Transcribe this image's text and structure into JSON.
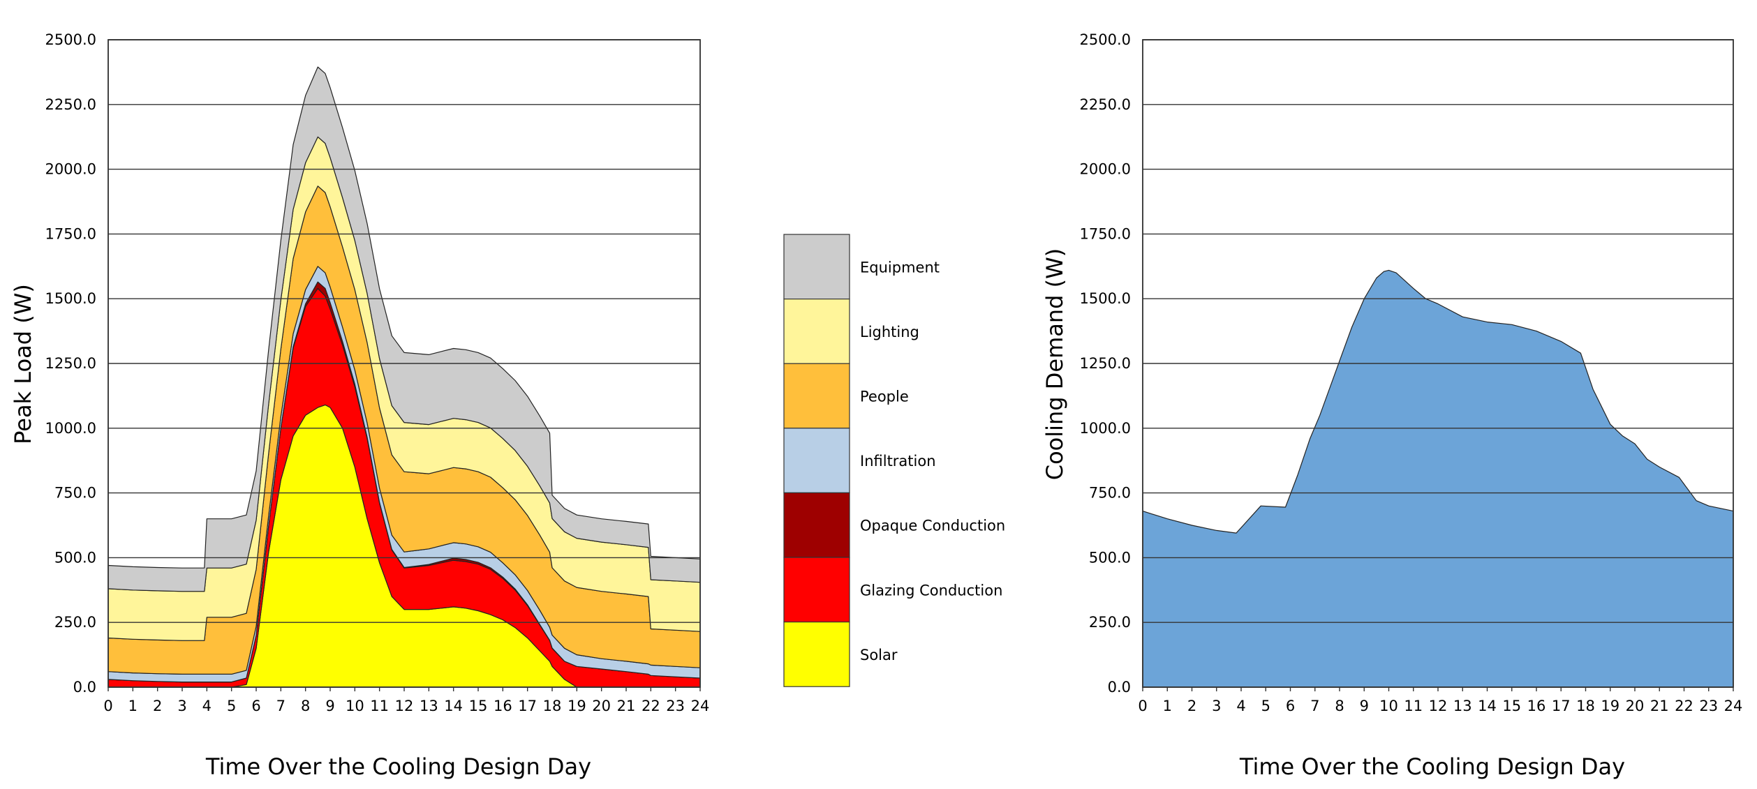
{
  "chart_data": [
    {
      "type": "area",
      "stacked": true,
      "xlabel": "Time Over the Cooling Design Day",
      "ylabel": "Peak Load (W)",
      "xlim": [
        0,
        24
      ],
      "ylim": [
        0,
        2500
      ],
      "xticks": [
        "0",
        "1",
        "2",
        "3",
        "4",
        "5",
        "6",
        "7",
        "8",
        "9",
        "10",
        "11",
        "12",
        "13",
        "14",
        "15",
        "16",
        "17",
        "18",
        "19",
        "20",
        "21",
        "22",
        "23",
        "24"
      ],
      "yticks": [
        "0.0",
        "250.0",
        "500.0",
        "750.0",
        "1000.0",
        "1250.0",
        "1500.0",
        "1750.0",
        "2000.0",
        "2250.0",
        "2500.0"
      ],
      "grid": "horizontal",
      "legend_position": "right",
      "x": [
        0,
        1,
        2,
        3,
        3.9,
        4,
        5,
        5.6,
        6,
        6.5,
        7,
        7.5,
        8,
        8.5,
        8.8,
        9,
        9.5,
        10,
        10.5,
        11,
        11.5,
        12,
        12.5,
        13,
        13.5,
        14,
        14.5,
        15,
        15.5,
        16,
        16.5,
        17,
        17.5,
        17.9,
        18,
        18.5,
        19,
        20,
        21,
        21.9,
        22,
        23,
        24
      ],
      "series": [
        {
          "name": "Solar",
          "color": "#ffff00",
          "values": [
            0,
            0,
            0,
            0,
            0,
            0,
            0,
            10,
            150,
            520,
            800,
            970,
            1050,
            1080,
            1090,
            1080,
            1000,
            850,
            650,
            480,
            350,
            300,
            300,
            300,
            305,
            310,
            305,
            295,
            280,
            260,
            230,
            190,
            140,
            100,
            80,
            30,
            0,
            0,
            0,
            0,
            0,
            0,
            0
          ]
        },
        {
          "name": "Glazing Conduction",
          "color": "#ff0000",
          "values": [
            30,
            25,
            22,
            20,
            20,
            20,
            20,
            25,
            50,
            100,
            200,
            340,
            420,
            460,
            420,
            380,
            320,
            310,
            310,
            230,
            180,
            160,
            165,
            170,
            175,
            180,
            180,
            180,
            175,
            160,
            145,
            125,
            100,
            80,
            70,
            70,
            80,
            70,
            60,
            50,
            45,
            40,
            35
          ]
        },
        {
          "name": "Opaque Conduction",
          "color": "#9e0000",
          "values": [
            0,
            0,
            0,
            0,
            0,
            0,
            0,
            0,
            0,
            0,
            0,
            5,
            10,
            25,
            30,
            25,
            15,
            10,
            5,
            3,
            2,
            2,
            3,
            4,
            6,
            8,
            8,
            7,
            6,
            5,
            4,
            3,
            2,
            1,
            1,
            0,
            0,
            0,
            0,
            0,
            0,
            0,
            0
          ]
        },
        {
          "name": "Infiltration",
          "color": "#b8cfe6",
          "values": [
            30,
            30,
            30,
            30,
            30,
            30,
            30,
            30,
            35,
            40,
            45,
            50,
            55,
            60,
            60,
            60,
            55,
            55,
            55,
            55,
            55,
            60,
            60,
            60,
            60,
            60,
            60,
            60,
            60,
            55,
            55,
            55,
            55,
            50,
            50,
            50,
            45,
            40,
            40,
            40,
            40,
            40,
            40
          ]
        },
        {
          "name": "People",
          "color": "#ffbf3b",
          "values": [
            130,
            130,
            130,
            130,
            130,
            220,
            220,
            220,
            220,
            240,
            260,
            290,
            300,
            310,
            310,
            310,
            310,
            310,
            310,
            310,
            310,
            310,
            300,
            290,
            290,
            290,
            290,
            290,
            290,
            290,
            290,
            290,
            290,
            290,
            260,
            260,
            260,
            260,
            260,
            260,
            140,
            140,
            140
          ]
        },
        {
          "name": "Lighting",
          "color": "#fff59a",
          "values": [
            190,
            190,
            190,
            190,
            190,
            190,
            190,
            190,
            190,
            190,
            190,
            190,
            190,
            190,
            190,
            190,
            190,
            190,
            190,
            190,
            190,
            190,
            190,
            190,
            190,
            190,
            190,
            190,
            190,
            190,
            190,
            190,
            190,
            190,
            190,
            190,
            190,
            190,
            190,
            190,
            190,
            190,
            190
          ]
        },
        {
          "name": "Equipment",
          "color": "#cccccc",
          "values": [
            90,
            90,
            90,
            90,
            90,
            190,
            190,
            190,
            190,
            210,
            230,
            250,
            260,
            270,
            270,
            270,
            270,
            270,
            270,
            270,
            270,
            270,
            270,
            270,
            270,
            270,
            270,
            270,
            270,
            270,
            270,
            270,
            270,
            270,
            90,
            90,
            90,
            90,
            90,
            90,
            90,
            90,
            90
          ]
        }
      ]
    },
    {
      "type": "area",
      "xlabel": "Time Over the Cooling Design Day",
      "ylabel": "Cooling Demand (W)",
      "xlim": [
        0,
        24
      ],
      "ylim": [
        0,
        2500
      ],
      "xticks": [
        "0",
        "1",
        "2",
        "3",
        "4",
        "5",
        "6",
        "7",
        "8",
        "9",
        "10",
        "11",
        "12",
        "13",
        "14",
        "15",
        "16",
        "17",
        "18",
        "19",
        "20",
        "21",
        "22",
        "23",
        "24"
      ],
      "yticks": [
        "0.0",
        "250.0",
        "500.0",
        "750.0",
        "1000.0",
        "1250.0",
        "1500.0",
        "1750.0",
        "2000.0",
        "2250.0",
        "2500.0"
      ],
      "grid": "horizontal",
      "color": "#6ca4d8",
      "x": [
        0,
        1,
        2,
        3,
        3.8,
        4.8,
        5.8,
        6.3,
        6.8,
        7.2,
        8,
        8.5,
        9,
        9.5,
        9.8,
        10,
        10.3,
        11,
        11.5,
        12,
        13,
        14,
        15,
        16,
        17,
        17.8,
        18.3,
        19,
        19.5,
        20,
        20.5,
        21,
        21.8,
        22.5,
        23,
        24
      ],
      "values": [
        680,
        650,
        625,
        605,
        595,
        700,
        695,
        820,
        960,
        1050,
        1260,
        1390,
        1500,
        1580,
        1605,
        1610,
        1600,
        1540,
        1500,
        1480,
        1430,
        1410,
        1400,
        1375,
        1335,
        1290,
        1150,
        1015,
        970,
        940,
        880,
        850,
        810,
        720,
        700,
        680
      ]
    }
  ],
  "legend": {
    "items": [
      {
        "label": "Equipment",
        "color": "#cccccc"
      },
      {
        "label": "Lighting",
        "color": "#fff59a"
      },
      {
        "label": "People",
        "color": "#ffbf3b"
      },
      {
        "label": "Infiltration",
        "color": "#b8cfe6"
      },
      {
        "label": "Opaque Conduction",
        "color": "#9e0000"
      },
      {
        "label": "Glazing Conduction",
        "color": "#ff0000"
      },
      {
        "label": "Solar",
        "color": "#ffff00"
      }
    ]
  }
}
